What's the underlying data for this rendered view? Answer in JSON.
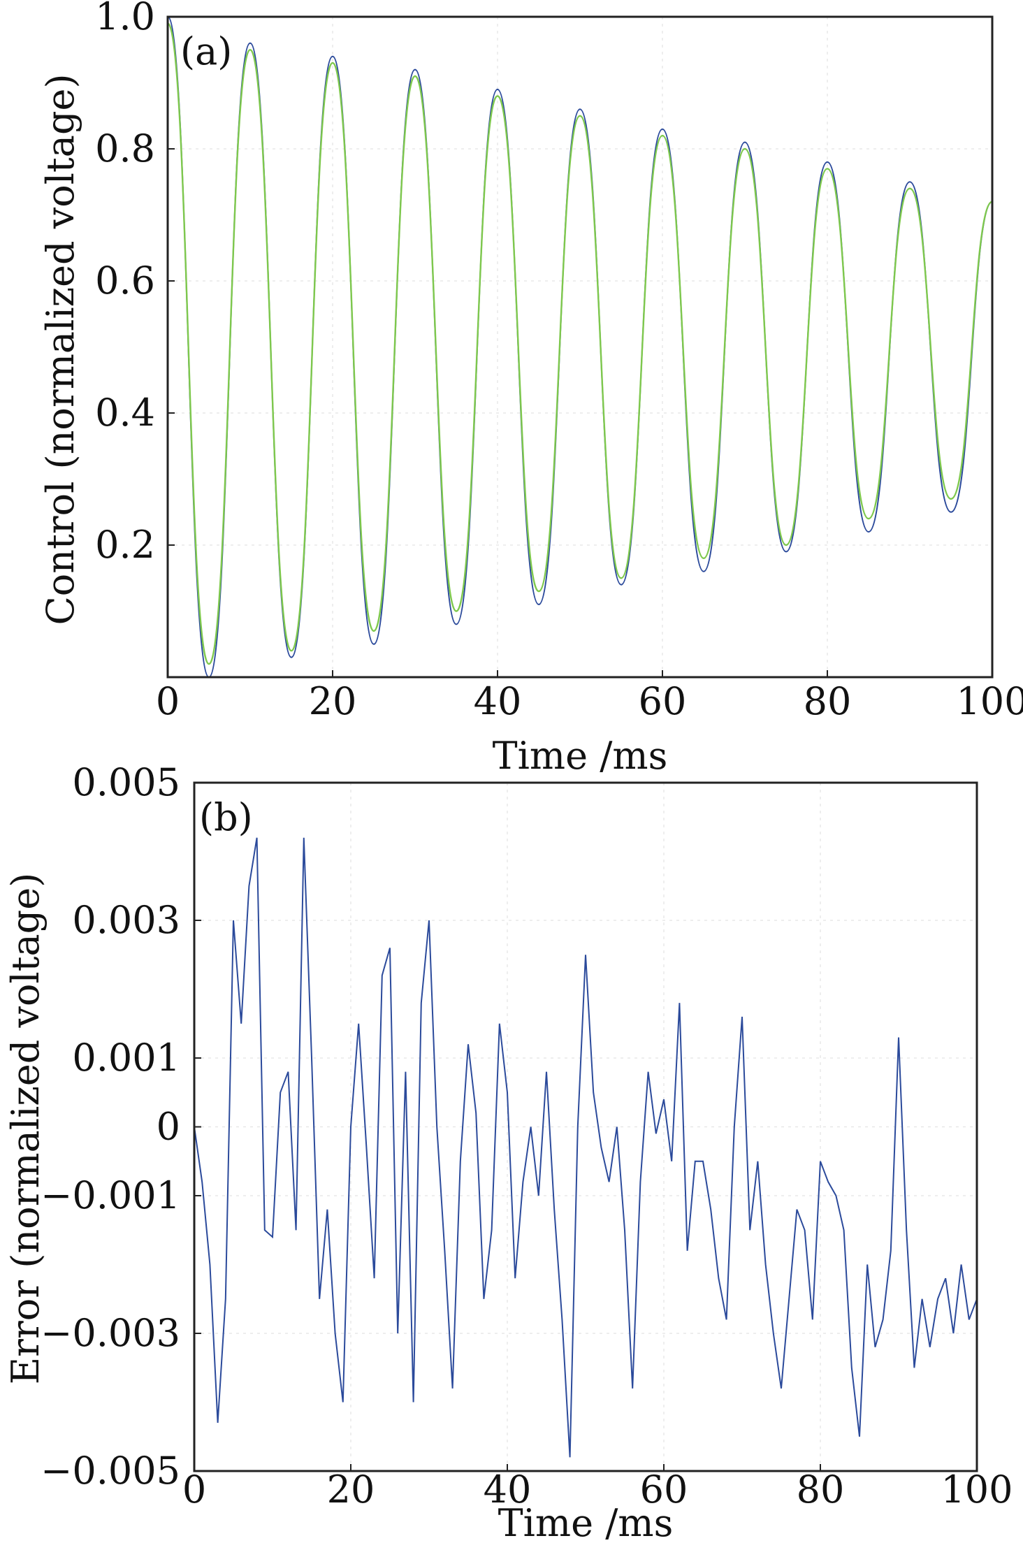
{
  "chart_data": [
    {
      "panel_label": "(a)",
      "type": "line",
      "xlabel": "Time /ms",
      "ylabel": "Control (normalized voltage)",
      "xlim": [
        0,
        100
      ],
      "ylim": [
        0,
        1.0
      ],
      "x_ticks": [
        "0",
        "20",
        "40",
        "60",
        "80",
        "100"
      ],
      "y_ticks": [
        "0.2",
        "0.4",
        "0.6",
        "0.8",
        "1.0"
      ],
      "grid": true,
      "legend": "none",
      "series": [
        {
          "color": "#2b4a9b",
          "x": [
            0,
            5,
            10,
            15,
            20,
            25,
            30,
            35,
            40,
            45,
            50,
            55,
            60,
            65,
            70,
            75,
            80,
            85,
            90,
            95,
            100
          ],
          "values": [
            1.0,
            0.0,
            0.96,
            0.03,
            0.94,
            0.05,
            0.92,
            0.08,
            0.89,
            0.11,
            0.86,
            0.14,
            0.83,
            0.16,
            0.81,
            0.19,
            0.78,
            0.22,
            0.75,
            0.25,
            0.72
          ]
        },
        {
          "color": "#7ec84d",
          "x": [
            0,
            5,
            10,
            15,
            20,
            25,
            30,
            35,
            40,
            45,
            50,
            55,
            60,
            65,
            70,
            75,
            80,
            85,
            90,
            95,
            100
          ],
          "values": [
            0.99,
            0.02,
            0.95,
            0.04,
            0.93,
            0.07,
            0.91,
            0.1,
            0.88,
            0.13,
            0.85,
            0.15,
            0.82,
            0.18,
            0.8,
            0.2,
            0.77,
            0.24,
            0.74,
            0.27,
            0.72
          ]
        }
      ]
    },
    {
      "panel_label": "(b)",
      "type": "line",
      "xlabel": "Time /ms",
      "ylabel": "Error (normalized voltage)",
      "xlim": [
        0,
        100
      ],
      "ylim": [
        -0.005,
        0.005
      ],
      "x_ticks": [
        "0",
        "20",
        "40",
        "60",
        "80",
        "100"
      ],
      "y_ticks": [
        "0.005",
        "0.003",
        "0.001",
        "0",
        "−0.001",
        "−0.003",
        "−0.005"
      ],
      "y_tick_values": [
        0.005,
        0.003,
        0.001,
        0,
        -0.001,
        -0.003,
        -0.005
      ],
      "grid": true,
      "legend": "none",
      "series": [
        {
          "color": "#2b4a9b",
          "x": [
            0,
            1,
            2,
            3,
            4,
            5,
            6,
            7,
            8,
            9,
            10,
            11,
            12,
            13,
            14,
            15,
            16,
            17,
            18,
            19,
            20,
            21,
            22,
            23,
            24,
            25,
            26,
            27,
            28,
            29,
            30,
            31,
            32,
            33,
            34,
            35,
            36,
            37,
            38,
            39,
            40,
            41,
            42,
            43,
            44,
            45,
            46,
            47,
            48,
            49,
            50,
            51,
            52,
            53,
            54,
            55,
            56,
            57,
            58,
            59,
            60,
            61,
            62,
            63,
            64,
            65,
            66,
            67,
            68,
            69,
            70,
            71,
            72,
            73,
            74,
            75,
            76,
            77,
            78,
            79,
            80,
            81,
            82,
            83,
            84,
            85,
            86,
            87,
            88,
            89,
            90,
            91,
            92,
            93,
            94,
            95,
            96,
            97,
            98,
            99,
            100
          ],
          "values": [
            0.0,
            -0.0008,
            -0.002,
            -0.0043,
            -0.0025,
            0.003,
            0.0015,
            0.0035,
            0.0042,
            -0.0015,
            -0.0016,
            0.0005,
            0.0008,
            -0.0015,
            0.0042,
            0.001,
            -0.0025,
            -0.0012,
            -0.003,
            -0.004,
            0.0,
            0.0015,
            -0.0003,
            -0.0022,
            0.0022,
            0.0026,
            -0.003,
            0.0008,
            -0.004,
            0.0018,
            0.003,
            0.0,
            -0.0018,
            -0.0038,
            -0.0005,
            0.0012,
            0.0002,
            -0.0025,
            -0.0015,
            0.0015,
            0.0005,
            -0.0022,
            -0.0008,
            0.0,
            -0.001,
            0.0008,
            -0.0012,
            -0.0028,
            -0.0048,
            0.0,
            0.0025,
            0.0005,
            -0.0003,
            -0.0008,
            0.0,
            -0.0015,
            -0.0038,
            -0.0008,
            0.0008,
            -0.0001,
            0.0004,
            -0.0005,
            0.0018,
            -0.0018,
            -0.0005,
            -0.0005,
            -0.0012,
            -0.0022,
            -0.0028,
            0.0,
            0.0016,
            -0.0015,
            -0.0005,
            -0.002,
            -0.003,
            -0.0038,
            -0.0025,
            -0.0012,
            -0.0015,
            -0.0028,
            -0.0005,
            -0.0008,
            -0.001,
            -0.0015,
            -0.0035,
            -0.0045,
            -0.002,
            -0.0032,
            -0.0028,
            -0.0018,
            0.0013,
            -0.0015,
            -0.0035,
            -0.0025,
            -0.0032,
            -0.0025,
            -0.0022,
            -0.003,
            -0.002,
            -0.0028,
            -0.0025
          ]
        }
      ]
    }
  ]
}
